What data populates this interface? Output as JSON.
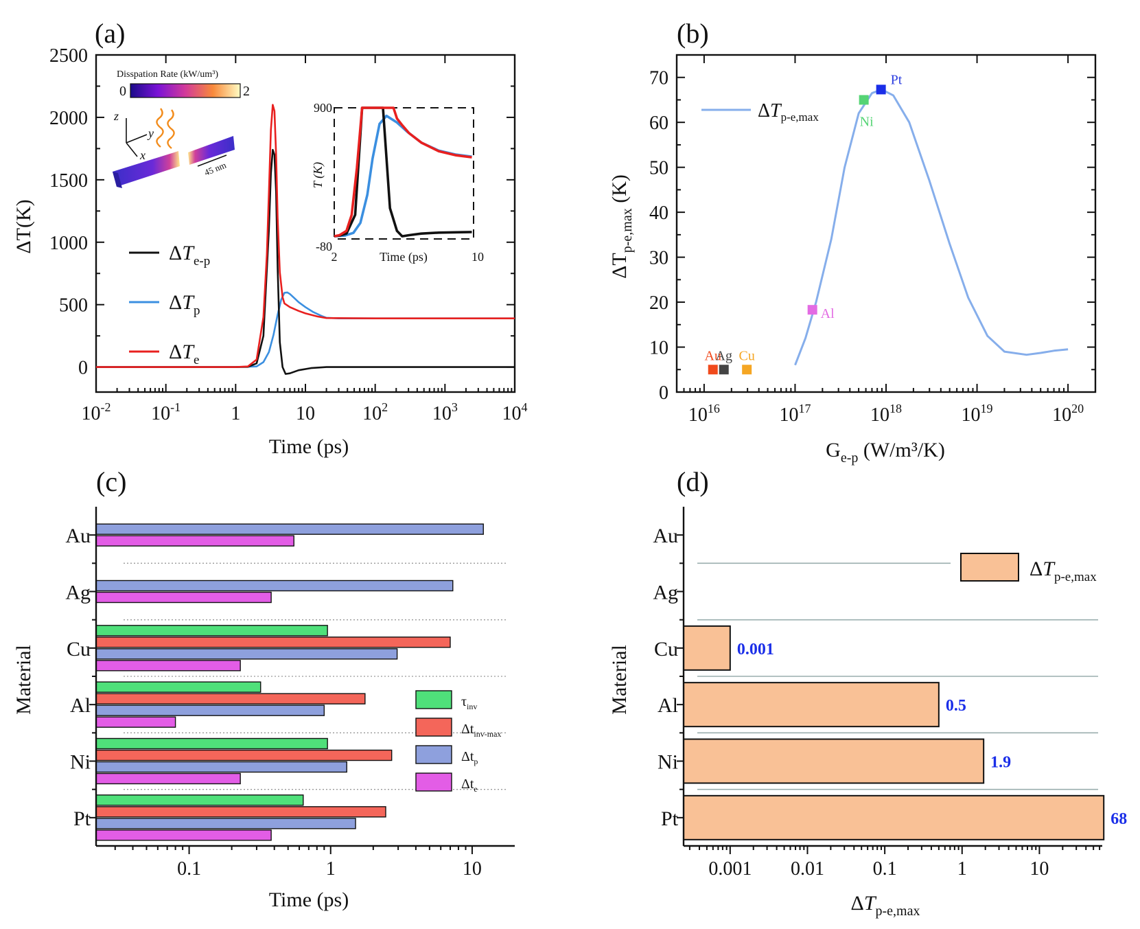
{
  "chart_data": [
    {
      "id": "a",
      "panel_label": "(a)",
      "type": "line",
      "xscale": "log",
      "xlim": [
        0.01,
        10000
      ],
      "ylim": [
        -200,
        2500
      ],
      "xlabel": "Time (ps)",
      "ylabel": "ΔT(K)",
      "xticks": [
        {
          "v": 0.01,
          "base": "10",
          "exp": "-2"
        },
        {
          "v": 0.1,
          "base": "10",
          "exp": "-1"
        },
        {
          "v": 1,
          "base": "1",
          "exp": ""
        },
        {
          "v": 10,
          "base": "10",
          "exp": ""
        },
        {
          "v": 100,
          "base": "10",
          "exp": "2"
        },
        {
          "v": 1000,
          "base": "10",
          "exp": "3"
        },
        {
          "v": 10000,
          "base": "10",
          "exp": "4"
        }
      ],
      "yticks": [
        0,
        500,
        1000,
        1500,
        2000,
        2500
      ],
      "series": [
        {
          "name": "e-p",
          "color": "#111111",
          "x": [
            0.01,
            1.0,
            1.5,
            2.0,
            2.5,
            3.0,
            3.2,
            3.4,
            3.6,
            3.8,
            4.0,
            4.3,
            4.7,
            5.2,
            6.0,
            8.0,
            12,
            20,
            100,
            10000
          ],
          "y": [
            0,
            0,
            2,
            30,
            250,
            1100,
            1550,
            1740,
            1700,
            1400,
            800,
            200,
            0,
            -55,
            -50,
            -25,
            -8,
            0,
            0,
            0
          ]
        },
        {
          "name": "p",
          "color": "#3b8fe0",
          "x": [
            0.01,
            1.0,
            2.0,
            2.5,
            3.0,
            3.5,
            4.0,
            4.5,
            5.0,
            5.5,
            6.0,
            7.0,
            8.0,
            10,
            13,
            17,
            20,
            30,
            100,
            10000
          ],
          "y": [
            0,
            0,
            5,
            40,
            120,
            260,
            420,
            540,
            595,
            598,
            585,
            550,
            520,
            480,
            440,
            410,
            395,
            390,
            390,
            390
          ]
        },
        {
          "name": "e",
          "color": "#e8201f",
          "x": [
            0.01,
            1.0,
            1.5,
            2.0,
            2.5,
            2.8,
            3.0,
            3.2,
            3.4,
            3.6,
            3.8,
            4.0,
            4.3,
            4.7,
            5.0,
            6.0,
            8.0,
            10,
            15,
            20,
            100,
            10000
          ],
          "y": [
            0,
            0,
            5,
            60,
            400,
            900,
            1400,
            1900,
            2100,
            2050,
            1700,
            1200,
            760,
            560,
            510,
            480,
            450,
            430,
            405,
            393,
            390,
            390
          ]
        }
      ],
      "legend": [
        {
          "key": "e-p",
          "symbol": "ΔT",
          "sub": "e-p",
          "color": "#111111"
        },
        {
          "key": "p",
          "symbol": "ΔT",
          "sub": "p",
          "color": "#3b8fe0"
        },
        {
          "key": "e",
          "symbol": "ΔT",
          "sub": "e",
          "color": "#e8201f"
        }
      ],
      "colorbar": {
        "title": "Disspation Rate (kW/um³)",
        "min_label": "0",
        "max_label": "2"
      },
      "schematic": {
        "axis_x": "x",
        "axis_y": "y",
        "axis_z": "z",
        "gap_label": "45 nm"
      },
      "inset": {
        "xlim": [
          2,
          10
        ],
        "ylim": [
          -80,
          900
        ],
        "xlabel": "Time (ps)",
        "ylabel": "T (K)",
        "xtick_labels": [
          "2",
          "10"
        ],
        "ytick_labels": [
          "900",
          "-80"
        ],
        "series": [
          {
            "name": "e-p",
            "color": "#111111",
            "x": [
              2.0,
              2.3,
              2.7,
              3.2,
              3.6,
              4.8,
              5.2,
              5.6,
              5.9,
              6.3,
              7.0,
              8.0,
              9.0,
              9.9
            ],
            "y": [
              -60,
              -55,
              -40,
              100,
              900,
              900,
              150,
              -20,
              -60,
              -52,
              -40,
              -33,
              -30,
              -28
            ]
          },
          {
            "name": "p",
            "color": "#3b8fe0",
            "x": [
              2.0,
              2.6,
              3.1,
              3.5,
              3.9,
              4.2,
              4.6,
              5.0,
              5.6,
              6.2,
              7.0,
              8.0,
              9.0,
              9.9
            ],
            "y": [
              -60,
              -55,
              -35,
              40,
              250,
              520,
              780,
              840,
              790,
              720,
              640,
              580,
              550,
              535
            ]
          },
          {
            "name": "e",
            "color": "#e8201f",
            "x": [
              2.0,
              2.3,
              2.7,
              3.0,
              3.3,
              3.6,
              5.4,
              5.6,
              5.9,
              6.3,
              7.0,
              8.0,
              9.0,
              9.9
            ],
            "y": [
              -60,
              -52,
              -20,
              100,
              450,
              900,
              900,
              820,
              770,
              710,
              640,
              575,
              545,
              530
            ]
          }
        ]
      }
    },
    {
      "id": "b",
      "panel_label": "(b)",
      "type": "line",
      "xscale": "log",
      "xlim": [
        5000000000000000.0,
        2e+20
      ],
      "ylim": [
        0,
        75
      ],
      "xlabel": "G",
      "xlabel_sub": "e-p",
      "xlabel_rest": " (W/m³/K)",
      "ylabel": "ΔT",
      "ylabel_sub": "p-e,max",
      "ylabel_rest": " (K)",
      "xticks": [
        {
          "v": 1e+16,
          "base": "10",
          "exp": "16"
        },
        {
          "v": 1e+17,
          "base": "10",
          "exp": "17"
        },
        {
          "v": 1e+18,
          "base": "10",
          "exp": "18"
        },
        {
          "v": 1e+19,
          "base": "10",
          "exp": "19"
        },
        {
          "v": 1e+20,
          "base": "10",
          "exp": "20"
        }
      ],
      "yticks": [
        0,
        10,
        20,
        30,
        40,
        50,
        60,
        70
      ],
      "series": [
        {
          "name": "ΔT p-e,max",
          "color": "#86aeeb",
          "x": [
            1e+17,
            1.3e+17,
            1.7e+17,
            2.5e+17,
            3.5e+17,
            5e+17,
            7e+17,
            9e+17,
            1.2e+18,
            1.8e+18,
            3e+18,
            5e+18,
            8e+18,
            1.3e+19,
            2e+19,
            3.5e+19,
            5e+19,
            7e+19,
            1e+20
          ],
          "y": [
            6,
            12,
            20,
            34,
            50,
            62,
            66.5,
            67.3,
            66,
            60,
            47,
            33,
            21,
            12.5,
            9,
            8.3,
            8.7,
            9.2,
            9.5
          ]
        }
      ],
      "legend": [
        {
          "symbol": "ΔT",
          "sub": "p-e,max",
          "color": "#86aeeb"
        }
      ],
      "points": [
        {
          "label": "Pt",
          "x": 8.8e+17,
          "y": 67.3,
          "color": "#1a2ee8",
          "label_color": "#2c3ee0",
          "label_pos": "above-right"
        },
        {
          "label": "Ni",
          "x": 5.7e+17,
          "y": 65,
          "color": "#55d475",
          "label_color": "#55d475",
          "label_pos": "below"
        },
        {
          "label": "Al",
          "x": 1.55e+17,
          "y": 18.3,
          "color": "#e36be3",
          "label_color": "#e36be3",
          "label_pos": "right"
        },
        {
          "label": "Au",
          "x": 1.25e+16,
          "y": 5,
          "color": "#f04a1c",
          "label_color": "#f04a1c",
          "label_pos": "above"
        },
        {
          "label": "Ag",
          "x": 1.65e+16,
          "y": 5,
          "color": "#444444",
          "label_color": "#444444",
          "label_pos": "above"
        },
        {
          "label": "Cu",
          "x": 2.95e+16,
          "y": 5,
          "color": "#f5a623",
          "label_color": "#f5a623",
          "label_pos": "above"
        }
      ]
    },
    {
      "id": "c",
      "panel_label": "(c)",
      "type": "bar",
      "orientation": "horizontal",
      "xscale": "log",
      "xlim": [
        0.022,
        20
      ],
      "xlabel": "Time (ps)",
      "ylabel": "Material",
      "xtick_labels": [
        {
          "v": 0.1,
          "t": "0.1"
        },
        {
          "v": 1,
          "t": "1"
        },
        {
          "v": 10,
          "t": "10"
        }
      ],
      "categories": [
        "Au",
        "Ag",
        "Cu",
        "Al",
        "Ni",
        "Pt"
      ],
      "series": [
        {
          "name": "τ",
          "sub": "inv",
          "color": "#4fe07a",
          "values": [
            null,
            null,
            0.95,
            0.32,
            0.95,
            0.64
          ]
        },
        {
          "name": "Δt",
          "sub": "inv-max",
          "color": "#f4665a",
          "values": [
            null,
            null,
            7.0,
            1.75,
            2.7,
            2.45
          ]
        },
        {
          "name": "Δt",
          "sub": "p",
          "color": "#8ea0dd",
          "values": [
            12.0,
            7.3,
            2.95,
            0.9,
            1.3,
            1.5
          ]
        },
        {
          "name": "Δt",
          "sub": "e",
          "color": "#e35de6",
          "values": [
            0.55,
            0.38,
            0.23,
            0.08,
            0.23,
            0.38
          ]
        }
      ]
    },
    {
      "id": "d",
      "panel_label": "(d)",
      "type": "bar",
      "orientation": "horizontal",
      "xscale": "log",
      "xlim": [
        0.00025,
        65
      ],
      "xlabel": "ΔT",
      "xlabel_sub": "p-e,max",
      "ylabel": "Material",
      "xtick_labels": [
        {
          "v": 0.001,
          "t": "0.001"
        },
        {
          "v": 0.01,
          "t": "0.01"
        },
        {
          "v": 0.1,
          "t": "0.1"
        },
        {
          "v": 1,
          "t": "1"
        },
        {
          "v": 10,
          "t": "10"
        }
      ],
      "categories": [
        "Au",
        "Ag",
        "Cu",
        "Al",
        "Ni",
        "Pt"
      ],
      "values": [
        null,
        null,
        0.001,
        0.5,
        1.9,
        68
      ],
      "value_labels": [
        "",
        "",
        "0.001",
        "0.5",
        "1.9",
        "68"
      ],
      "bar_color": "#f9c196",
      "label_color": "#1a2ee8",
      "legend": [
        {
          "symbol": "ΔT",
          "sub": "p-e,max"
        }
      ]
    }
  ]
}
